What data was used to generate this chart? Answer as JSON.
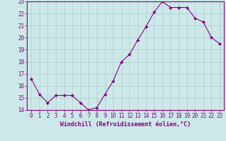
{
  "x": [
    0,
    1,
    2,
    3,
    4,
    5,
    6,
    7,
    8,
    9,
    10,
    11,
    12,
    13,
    14,
    15,
    16,
    17,
    18,
    19,
    20,
    21,
    22,
    23
  ],
  "y": [
    16.6,
    15.3,
    14.6,
    15.2,
    15.2,
    15.2,
    14.6,
    14.0,
    14.2,
    15.3,
    16.4,
    18.0,
    18.6,
    19.8,
    20.9,
    22.1,
    23.0,
    22.5,
    22.5,
    22.5,
    21.6,
    21.3,
    20.0,
    19.5
  ],
  "line_color": "#880088",
  "marker": "D",
  "marker_size": 2.0,
  "bg_color": "#cce8e8",
  "grid_color": "#aacccc",
  "xlabel": "Windchill (Refroidissement éolien,°C)",
  "xlabel_color": "#880088",
  "tick_color": "#880088",
  "spine_color": "#880088",
  "ylim": [
    14,
    23
  ],
  "xlim": [
    -0.5,
    23.5
  ],
  "yticks": [
    14,
    15,
    16,
    17,
    18,
    19,
    20,
    21,
    22,
    23
  ],
  "xticks": [
    0,
    1,
    2,
    3,
    4,
    5,
    6,
    7,
    8,
    9,
    10,
    11,
    12,
    13,
    14,
    15,
    16,
    17,
    18,
    19,
    20,
    21,
    22,
    23
  ],
  "tick_fontsize": 5.5,
  "xlabel_fontsize": 6.0
}
